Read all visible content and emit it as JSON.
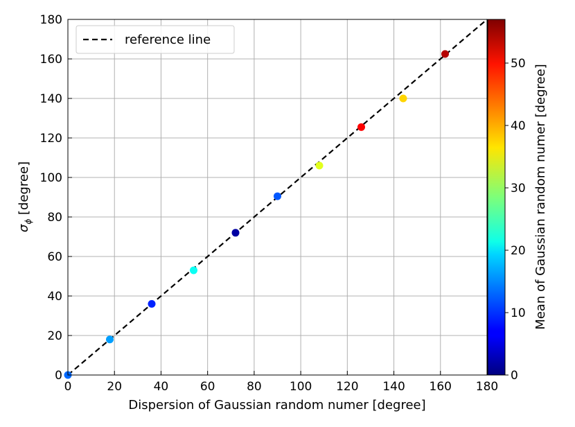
{
  "chart_data": {
    "type": "scatter",
    "title": "",
    "xlabel": "Dispersion of Gaussian random numer [degree]",
    "ylabel_main": "σ",
    "ylabel_sub": "ϕ",
    "ylabel_rest": " [degree]",
    "xlim": [
      0,
      180
    ],
    "ylim": [
      0,
      180
    ],
    "xticks": [
      "0",
      "20",
      "40",
      "60",
      "80",
      "100",
      "120",
      "140",
      "160",
      "180"
    ],
    "yticks": [
      "0",
      "20",
      "40",
      "60",
      "80",
      "100",
      "120",
      "140",
      "160",
      "180"
    ],
    "grid": true,
    "legend": {
      "label": "reference line",
      "placement": "top-left"
    },
    "reference_line": {
      "from": [
        0,
        0
      ],
      "to": [
        180,
        180
      ],
      "style": "dashed",
      "color": "#000000"
    },
    "colorbar": {
      "label": "Mean of Gaussian random numer [degree]",
      "range": [
        0,
        57
      ],
      "ticks": [
        "0",
        "10",
        "20",
        "30",
        "40",
        "50"
      ],
      "colormap": "jet"
    },
    "points": [
      {
        "x": 0,
        "y": 0,
        "c": 13
      },
      {
        "x": 18,
        "y": 18,
        "c": 16
      },
      {
        "x": 36,
        "y": 36,
        "c": 9
      },
      {
        "x": 54,
        "y": 53,
        "c": 22
      },
      {
        "x": 72,
        "y": 72,
        "c": 2
      },
      {
        "x": 90,
        "y": 90.5,
        "c": 12
      },
      {
        "x": 108,
        "y": 106,
        "c": 34
      },
      {
        "x": 126,
        "y": 125.5,
        "c": 50
      },
      {
        "x": 144,
        "y": 140,
        "c": 38
      },
      {
        "x": 162,
        "y": 162.5,
        "c": 54
      }
    ]
  }
}
